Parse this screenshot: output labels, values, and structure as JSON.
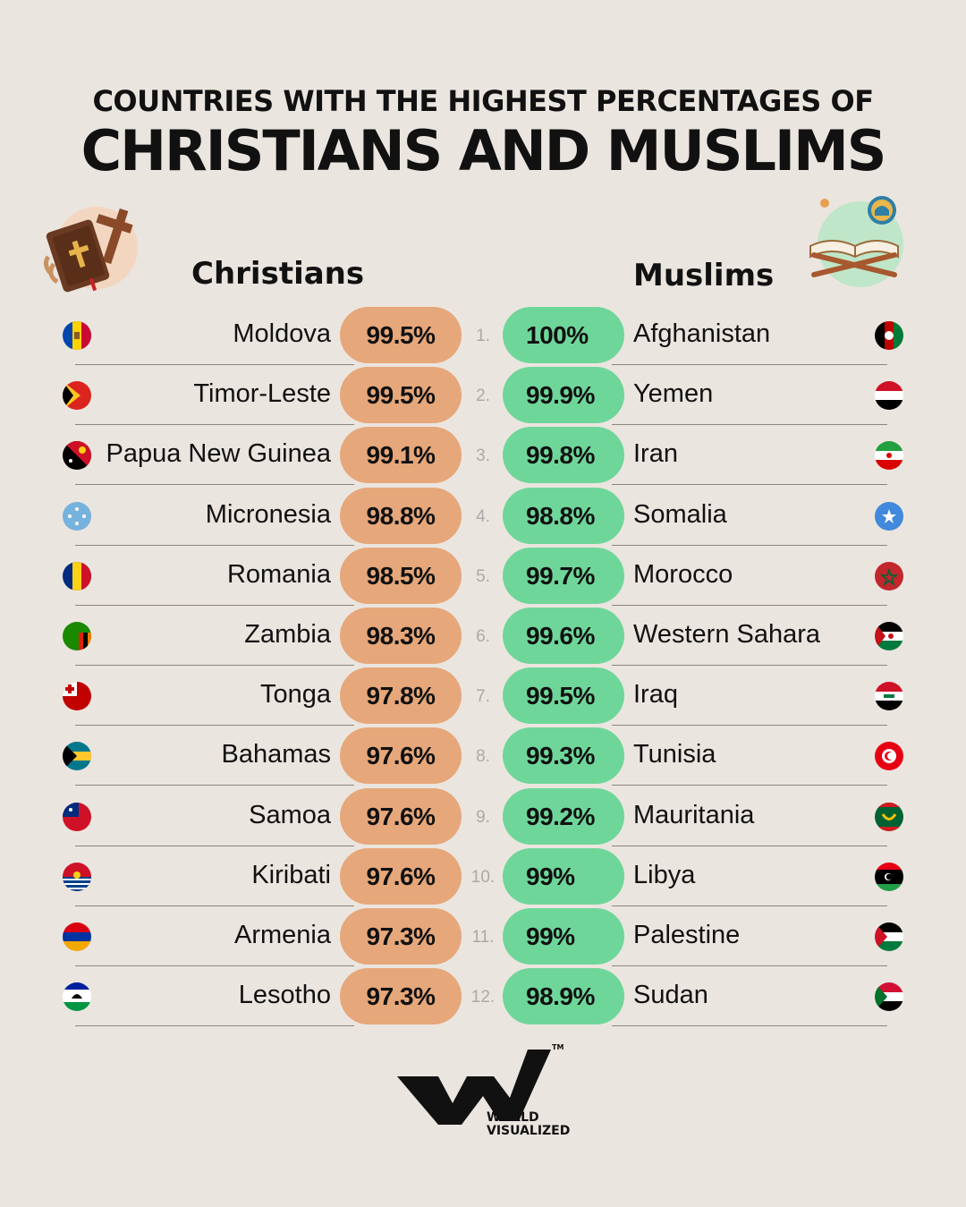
{
  "title_line1": "COUNTRIES WITH THE HIGHEST PERCENTAGES OF",
  "title_line2": "CHRISTIANS AND MUSLIMS",
  "chart_data": {
    "type": "table",
    "columns": [
      "Christians",
      "Muslims"
    ],
    "rows": [
      {
        "rank": "1.",
        "christian_country": "Moldova",
        "christian_pct": "99.5%",
        "muslim_pct": "100%",
        "muslim_country": "Afghanistan"
      },
      {
        "rank": "2.",
        "christian_country": "Timor-Leste",
        "christian_pct": "99.5%",
        "muslim_pct": "99.9%",
        "muslim_country": "Yemen"
      },
      {
        "rank": "3.",
        "christian_country": "Papua New Guinea",
        "christian_pct": "99.1%",
        "muslim_pct": "99.8%",
        "muslim_country": "Iran"
      },
      {
        "rank": "4.",
        "christian_country": "Micronesia",
        "christian_pct": "98.8%",
        "muslim_pct": "98.8%",
        "muslim_country": "Somalia"
      },
      {
        "rank": "5.",
        "christian_country": "Romania",
        "christian_pct": "98.5%",
        "muslim_pct": "99.7%",
        "muslim_country": "Morocco"
      },
      {
        "rank": "6.",
        "christian_country": "Zambia",
        "christian_pct": "98.3%",
        "muslim_pct": "99.6%",
        "muslim_country": "Western Sahara"
      },
      {
        "rank": "7.",
        "christian_country": "Tonga",
        "christian_pct": "97.8%",
        "muslim_pct": "99.5%",
        "muslim_country": "Iraq"
      },
      {
        "rank": "8.",
        "christian_country": "Bahamas",
        "christian_pct": "97.6%",
        "muslim_pct": "99.3%",
        "muslim_country": "Tunisia"
      },
      {
        "rank": "9.",
        "christian_country": "Samoa",
        "christian_pct": "97.6%",
        "muslim_pct": "99.2%",
        "muslim_country": "Mauritania"
      },
      {
        "rank": "10.",
        "christian_country": "Kiribati",
        "christian_pct": "97.6%",
        "muslim_pct": "99%",
        "muslim_country": "Libya"
      },
      {
        "rank": "11.",
        "christian_country": "Armenia",
        "christian_pct": "97.3%",
        "muslim_pct": "99%",
        "muslim_country": "Palestine"
      },
      {
        "rank": "12.",
        "christian_country": "Lesotho",
        "christian_pct": "97.3%",
        "muslim_pct": "98.9%",
        "muslim_country": "Sudan"
      }
    ]
  },
  "colors": {
    "background": "#ebe5df",
    "christian_pill": "#e6a77a",
    "muslim_pill": "#6fd69a"
  },
  "icons": {
    "christian": "bible-cross-icon",
    "muslim": "quran-mosque-icon"
  },
  "logo": {
    "line1": "WORLD",
    "line2": "VISUALIZED",
    "tm": "TM"
  }
}
